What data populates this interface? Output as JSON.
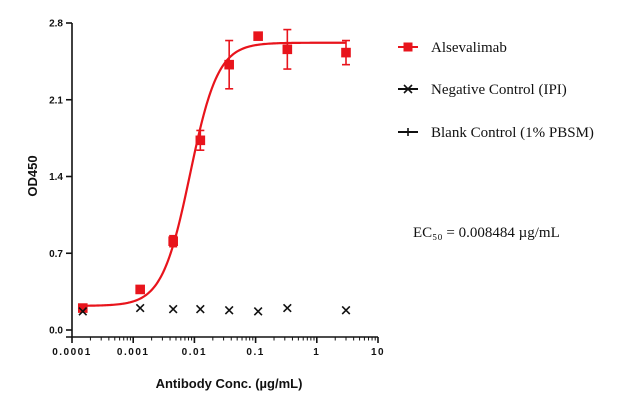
{
  "chart_data": {
    "type": "scatter",
    "xscale": "log",
    "xlim": [
      0.0001,
      10
    ],
    "ylim": [
      0,
      2.8
    ],
    "x_ticks": [
      0.0001,
      0.001,
      0.01,
      0.1,
      1,
      10
    ],
    "x_tick_labels": [
      "0.0001",
      "0.001",
      "0.01",
      "0.1",
      "1",
      "10"
    ],
    "y_ticks": [
      0,
      0.7,
      1.4,
      2.1,
      2.8
    ],
    "y_tick_labels": [
      "0.0",
      "0.7",
      "1.4",
      "2.1",
      "2.8"
    ],
    "xlabel": "Antibody Conc. (µg/mL)",
    "ylabel": "OD450",
    "legend_position": "right",
    "series": [
      {
        "name": "Alsevalimab",
        "marker": "square",
        "color": "#e8141c",
        "x": [
          0.00015,
          0.0013,
          0.0045,
          0.0125,
          0.037,
          0.11,
          0.33,
          3.0
        ],
        "y": [
          0.2,
          0.37,
          0.81,
          1.73,
          2.42,
          2.68,
          2.56,
          2.53
        ],
        "err": [
          0.01,
          0.02,
          0.05,
          0.09,
          0.22,
          0.0,
          0.18,
          0.11
        ],
        "fit": {
          "bottom": 0.22,
          "top": 2.62,
          "ec50": 0.008484,
          "hill": 1.9
        }
      },
      {
        "name": "Negative Control (IPI)",
        "marker": "x",
        "color": "#111111",
        "x": [
          0.00015,
          0.0013,
          0.0045,
          0.0125,
          0.037,
          0.11,
          0.33,
          3.0
        ],
        "y": [
          0.17,
          0.2,
          0.19,
          0.19,
          0.18,
          0.17,
          0.2,
          0.18
        ]
      },
      {
        "name": "Blank Control (1% PBSM)",
        "marker": "plus",
        "color": "#111111",
        "x": [],
        "y": []
      }
    ],
    "annotation": "EC₅₀ = 0.008484 µg/mL"
  }
}
